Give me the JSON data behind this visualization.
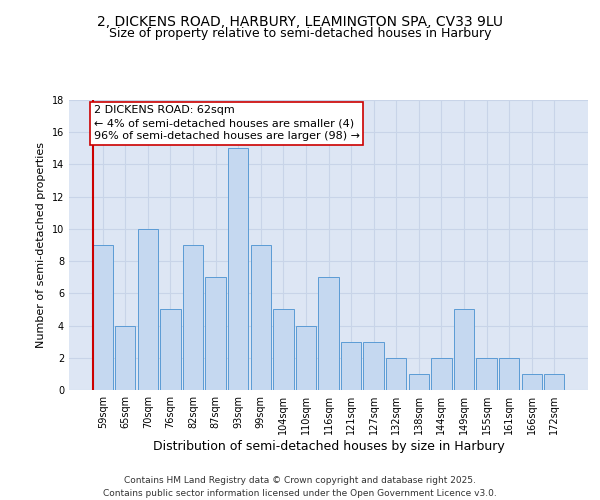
{
  "title_line1": "2, DICKENS ROAD, HARBURY, LEAMINGTON SPA, CV33 9LU",
  "title_line2": "Size of property relative to semi-detached houses in Harbury",
  "xlabel": "Distribution of semi-detached houses by size in Harbury",
  "ylabel": "Number of semi-detached properties",
  "categories": [
    "59sqm",
    "65sqm",
    "70sqm",
    "76sqm",
    "82sqm",
    "87sqm",
    "93sqm",
    "99sqm",
    "104sqm",
    "110sqm",
    "116sqm",
    "121sqm",
    "127sqm",
    "132sqm",
    "138sqm",
    "144sqm",
    "149sqm",
    "155sqm",
    "161sqm",
    "166sqm",
    "172sqm"
  ],
  "values": [
    9,
    4,
    10,
    5,
    9,
    7,
    15,
    9,
    5,
    4,
    7,
    3,
    3,
    2,
    1,
    2,
    5,
    2,
    2,
    1,
    1
  ],
  "bar_color": "#c5d8f0",
  "bar_edge_color": "#5b9bd5",
  "highlight_line_color": "#cc0000",
  "annotation_text": "2 DICKENS ROAD: 62sqm\n← 4% of semi-detached houses are smaller (4)\n96% of semi-detached houses are larger (98) →",
  "annotation_box_color": "#ffffff",
  "annotation_box_edge_color": "#cc0000",
  "ylim": [
    0,
    18
  ],
  "yticks": [
    0,
    2,
    4,
    6,
    8,
    10,
    12,
    14,
    16,
    18
  ],
  "grid_color": "#c8d4e8",
  "background_color": "#dde6f4",
  "footnote": "Contains HM Land Registry data © Crown copyright and database right 2025.\nContains public sector information licensed under the Open Government Licence v3.0.",
  "title_fontsize": 10,
  "subtitle_fontsize": 9,
  "xlabel_fontsize": 9,
  "ylabel_fontsize": 8,
  "tick_fontsize": 7,
  "annotation_fontsize": 8,
  "footnote_fontsize": 6.5
}
